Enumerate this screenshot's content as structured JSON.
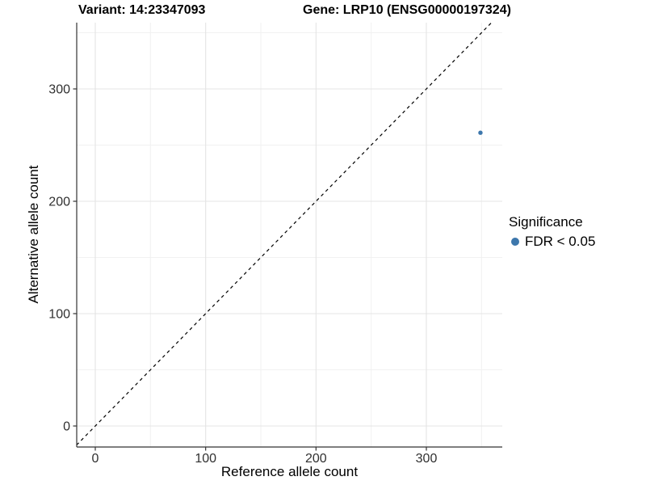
{
  "header": {
    "variant_title": "Variant: 14:23347093",
    "gene_title": "Gene: LRP10 (ENSG00000197324)"
  },
  "legend": {
    "title": "Significance",
    "items": [
      {
        "label": "FDR < 0.05",
        "color": "#3d77ac"
      }
    ]
  },
  "chart_data": {
    "type": "scatter",
    "xlabel": "Reference allele count",
    "ylabel": "Alternative allele count",
    "xlim": [
      -17,
      368
    ],
    "ylim": [
      -19,
      359
    ],
    "x_ticks": [
      0,
      100,
      200,
      300
    ],
    "y_ticks": [
      0,
      100,
      200,
      300
    ],
    "x_minor_ticks": [
      50,
      150,
      250,
      350
    ],
    "y_minor_ticks": [
      50,
      150,
      250,
      350
    ],
    "grid": "major_and_minor_light_grey",
    "legend_position": "right",
    "points": [
      {
        "x": 349,
        "y": 261,
        "series": "FDR < 0.05",
        "color": "#3d77ac"
      }
    ],
    "identity_line": {
      "slope": 1,
      "intercept": 0,
      "style": "dashed",
      "color": "#000000"
    },
    "colors": {
      "axis_line": "#333333",
      "tick_label": "#303030",
      "grid_major": "#e4e4e4",
      "grid_minor": "#f1f1f1"
    }
  }
}
